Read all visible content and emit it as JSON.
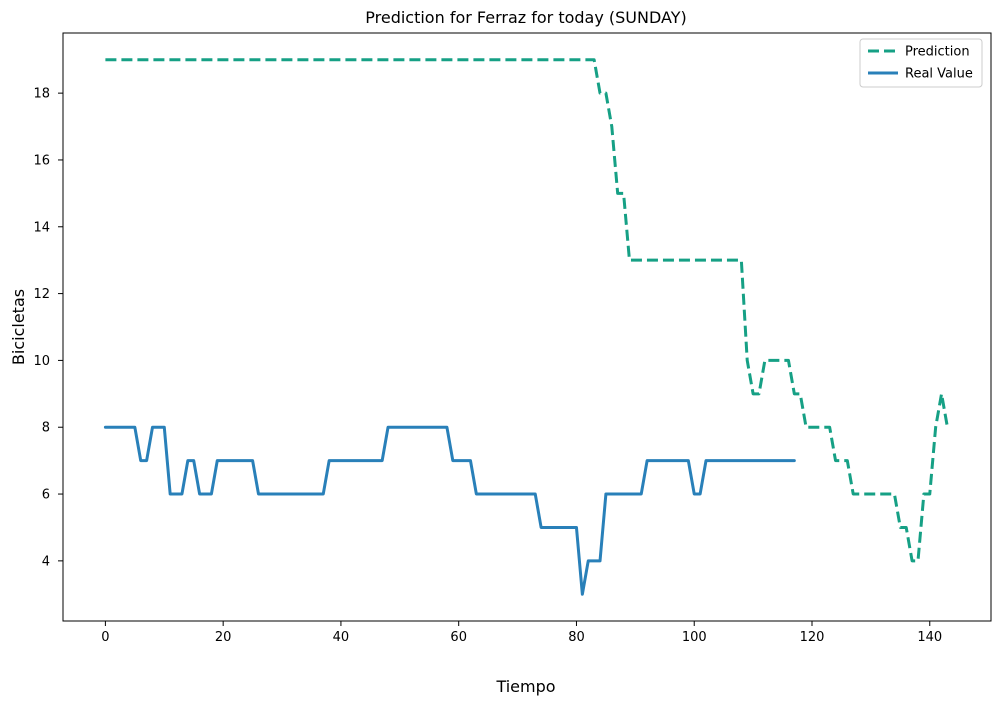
{
  "chart_data": {
    "type": "line",
    "title": "Prediction for Ferraz for today (SUNDAY)",
    "xlabel": "Tiempo",
    "ylabel": "Bicicletas",
    "xlim": [
      -7.2,
      150.4
    ],
    "ylim": [
      2.2,
      19.8
    ],
    "xticks": [
      0,
      20,
      40,
      60,
      80,
      100,
      120,
      140
    ],
    "yticks": [
      4,
      6,
      8,
      10,
      12,
      14,
      16,
      18
    ],
    "grid": false,
    "legend_position": "top-right",
    "series": [
      {
        "name": "Prediction",
        "style": "dashed",
        "color": "#16a085",
        "points": [
          [
            0,
            19
          ],
          [
            83,
            19
          ],
          [
            84,
            18
          ],
          [
            85,
            18
          ],
          [
            86,
            17
          ],
          [
            87,
            15
          ],
          [
            88,
            15
          ],
          [
            89,
            13
          ],
          [
            108,
            13
          ],
          [
            109,
            10
          ],
          [
            110,
            9
          ],
          [
            111,
            9
          ],
          [
            112,
            10
          ],
          [
            116,
            10
          ],
          [
            117,
            9
          ],
          [
            118,
            9
          ],
          [
            119,
            8
          ],
          [
            123,
            8
          ],
          [
            124,
            7
          ],
          [
            126,
            7
          ],
          [
            127,
            6
          ],
          [
            134,
            6
          ],
          [
            135,
            5
          ],
          [
            136,
            5
          ],
          [
            137,
            4
          ],
          [
            138,
            4
          ],
          [
            139,
            6
          ],
          [
            140,
            6
          ],
          [
            141,
            8
          ],
          [
            142,
            9
          ],
          [
            143,
            8
          ]
        ]
      },
      {
        "name": "Real Value",
        "style": "solid",
        "color": "#2980b9",
        "points": [
          [
            0,
            8
          ],
          [
            5,
            8
          ],
          [
            6,
            7
          ],
          [
            7,
            7
          ],
          [
            8,
            8
          ],
          [
            10,
            8
          ],
          [
            11,
            6
          ],
          [
            13,
            6
          ],
          [
            14,
            7
          ],
          [
            15,
            7
          ],
          [
            16,
            6
          ],
          [
            18,
            6
          ],
          [
            19,
            7
          ],
          [
            25,
            7
          ],
          [
            26,
            6
          ],
          [
            37,
            6
          ],
          [
            38,
            7
          ],
          [
            47,
            7
          ],
          [
            48,
            8
          ],
          [
            58,
            8
          ],
          [
            59,
            7
          ],
          [
            62,
            7
          ],
          [
            63,
            6
          ],
          [
            73,
            6
          ],
          [
            74,
            5
          ],
          [
            80,
            5
          ],
          [
            81,
            3
          ],
          [
            82,
            4
          ],
          [
            84,
            4
          ],
          [
            85,
            6
          ],
          [
            91,
            6
          ],
          [
            92,
            7
          ],
          [
            99,
            7
          ],
          [
            100,
            6
          ],
          [
            101,
            6
          ],
          [
            102,
            7
          ],
          [
            117,
            7
          ]
        ]
      }
    ]
  }
}
